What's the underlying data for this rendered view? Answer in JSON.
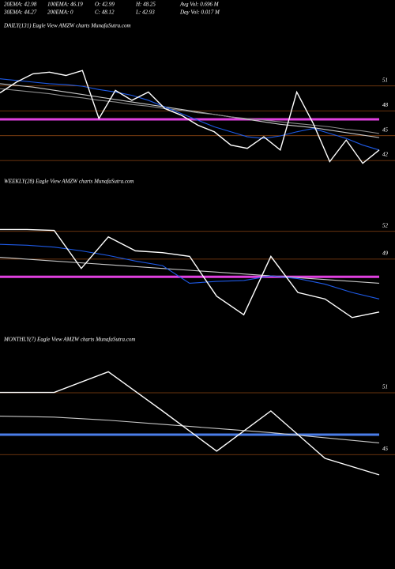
{
  "header": {
    "rows": [
      [
        "20EMA: 42.98",
        "100EMA: 46.19",
        "O: 42.99",
        "H: 48.25",
        "Avg Vol: 0.696  M"
      ],
      [
        "30EMA: 44.27",
        "200EMA: 0",
        "C: 48.12",
        "L: 42.93",
        "Day Vol: 0.017  M"
      ]
    ]
  },
  "chart_data": [
    {
      "type": "line",
      "title": "DAILY(131) Eagle  View  AMZW charts MunafaSutra.com",
      "ylim": [
        40.2,
        52.6
      ],
      "yticks": [
        51,
        48,
        45,
        42
      ],
      "grid": true,
      "grid_color": "#8b4513",
      "level": {
        "value": 46.3,
        "color": "#e040e0"
      },
      "series": [
        {
          "color": "#c8c8c8",
          "values": [
            50.6,
            50.4,
            50.2,
            49.9,
            49.6,
            49.3,
            49.0,
            48.7,
            48.4,
            48.1,
            47.8,
            47.5,
            47.2,
            46.9,
            46.6,
            46.3,
            46.0,
            45.7,
            45.5,
            45.3,
            45.0,
            44.7,
            44.4,
            44.1
          ]
        },
        {
          "color": "#8c8c8c",
          "values": [
            50.0,
            49.8,
            49.6,
            49.4,
            49.1,
            48.9,
            48.6,
            48.4,
            48.1,
            47.9,
            47.6,
            47.4,
            47.1,
            46.9,
            46.6,
            46.4,
            46.2,
            46.0,
            45.8,
            45.6,
            45.4,
            45.1,
            44.9,
            44.6
          ]
        },
        {
          "color": "#1e5ae6",
          "values": [
            51.2,
            51.0,
            50.8,
            50.6,
            50.5,
            50.3,
            49.9,
            49.6,
            49.2,
            48.6,
            47.8,
            47.0,
            46.2,
            45.4,
            44.8,
            44.2,
            44.0,
            44.3,
            44.8,
            45.2,
            44.6,
            44.0,
            43.2,
            42.6
          ]
        },
        {
          "color": "#ffffff",
          "values": [
            49.5,
            50.8,
            51.8,
            52.0,
            51.6,
            52.2,
            46.4,
            49.8,
            48.6,
            49.6,
            47.6,
            46.8,
            45.6,
            44.8,
            43.2,
            42.8,
            44.2,
            42.6,
            49.6,
            45.8,
            41.2,
            43.8,
            41.0,
            42.6
          ]
        }
      ]
    },
    {
      "type": "line",
      "title": "WEEKLY(28) Eagle  View  AMZW charts MunafaSutra.com",
      "ylim": [
        41.4,
        55.9
      ],
      "yticks": [
        52,
        49
      ],
      "grid": true,
      "grid_color": "#8b4513",
      "level": {
        "value": 46.5,
        "color": "#e040e0"
      },
      "series": [
        {
          "color": "#c8c8c8",
          "values": [
            48.6,
            48.4,
            48.2,
            48.0,
            47.8,
            47.6,
            47.4,
            47.2,
            47.0,
            46.8,
            46.6,
            46.4,
            46.2,
            46.0,
            45.8
          ]
        },
        {
          "color": "#1e5ae6",
          "values": [
            50.0,
            49.9,
            49.7,
            49.3,
            48.8,
            48.2,
            47.7,
            45.8,
            46.0,
            46.1,
            46.6,
            46.3,
            45.7,
            44.8,
            44.1
          ]
        },
        {
          "color": "#ffffff",
          "values": [
            51.6,
            51.6,
            51.5,
            47.4,
            50.8,
            49.3,
            49.1,
            48.7,
            44.4,
            42.4,
            48.7,
            44.8,
            44.1,
            42.1,
            42.7
          ]
        }
      ]
    },
    {
      "type": "line",
      "title": "MONTHLY(7) Eagle  View  AMZW charts MunafaSutra.com",
      "ylim": [
        41.8,
        53.3
      ],
      "yticks": [
        51,
        45
      ],
      "grid": true,
      "grid_color": "#8b4513",
      "level": {
        "value": 46.4,
        "color": "#4a7de8"
      },
      "series": [
        {
          "color": "#c8c8c8",
          "values": [
            48.2,
            48.1,
            47.8,
            47.4,
            47.0,
            46.6,
            46.1,
            45.6
          ]
        },
        {
          "color": "#ffffff",
          "values": [
            50.5,
            50.5,
            52.5,
            48.7,
            44.8,
            48.7,
            44.1,
            42.5
          ]
        }
      ]
    }
  ]
}
